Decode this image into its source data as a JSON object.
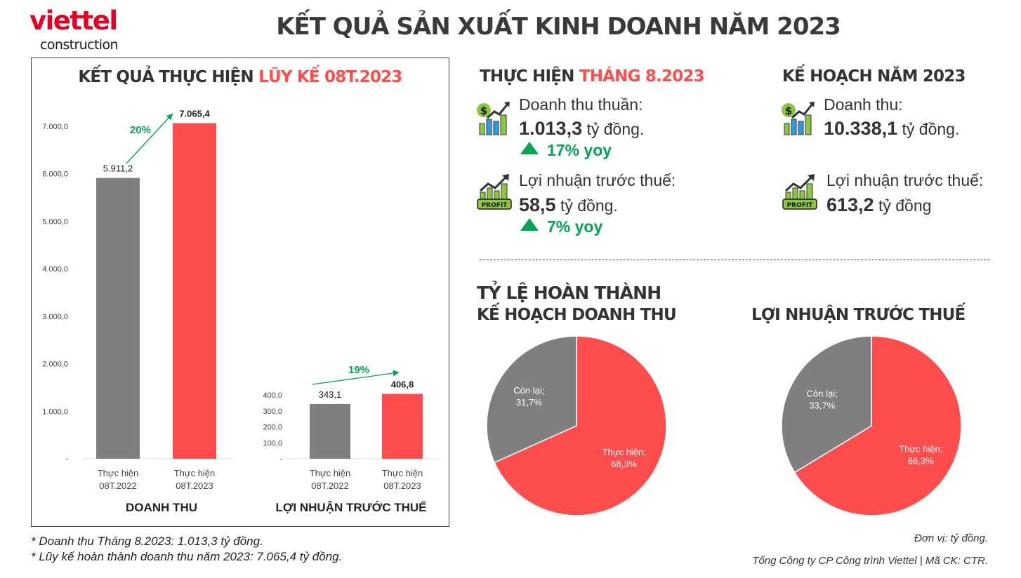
{
  "logo": {
    "brand": "viettel",
    "sub": "construction"
  },
  "title": "KẾT QUẢ SẢN XUẤT KINH DOANH NĂM 2023",
  "colors": {
    "red": "#ff4d4d",
    "gray": "#7f7f7f",
    "green": "#00a650"
  },
  "left_panel": {
    "title_part1": "KẾT QUẢ THỰC HIỆN ",
    "title_part2": "LŨY KẾ 08T.2023"
  },
  "chart_data": [
    {
      "type": "bar",
      "title": "DOANH THU",
      "categories": [
        "Thực hiện 08T.2022",
        "Thực hiện 08T.2023"
      ],
      "category_lines": [
        [
          "Thực hiện",
          "08T.2022"
        ],
        [
          "Thực hiện",
          "08T.2023"
        ]
      ],
      "values": [
        5911.2,
        7065.4
      ],
      "value_labels": [
        "5.911,2",
        "7.065,4"
      ],
      "colors": [
        "#7f7f7f",
        "#ff4d4d"
      ],
      "ylim": [
        0,
        7000
      ],
      "yticks": [
        0,
        1000,
        2000,
        3000,
        4000,
        5000,
        6000,
        7000
      ],
      "ytick_labels": [
        "-",
        "1.000,0",
        "2.000,0",
        "3.000,0",
        "4.000,0",
        "5.000,0",
        "6.000,0",
        "7.000,0"
      ],
      "growth_label": "20%"
    },
    {
      "type": "bar",
      "title": "LỢI NHUẬN TRƯỚC THUẾ",
      "categories": [
        "Thực hiện 08T.2022",
        "Thực hiện 08T.2023"
      ],
      "category_lines": [
        [
          "Thực hiện",
          "08T.2022"
        ],
        [
          "Thực hiện",
          "08T.2023"
        ]
      ],
      "values": [
        343.1,
        406.8
      ],
      "value_labels": [
        "343,1",
        "406,8"
      ],
      "colors": [
        "#7f7f7f",
        "#ff4d4d"
      ],
      "ylim": [
        0,
        400
      ],
      "yticks": [
        0,
        100,
        200,
        300,
        400
      ],
      "ytick_labels": [
        "-",
        "100,0",
        "200,0",
        "300,0",
        "400,0"
      ],
      "growth_label": "19%"
    },
    {
      "type": "pie",
      "title": "TỶ LỆ HOÀN THÀNH KẾ HOẠCH DOANH THU",
      "slices": [
        {
          "label": "Thực hiện;",
          "value": 68.3,
          "text": "68,3%",
          "color": "#ff4d4d"
        },
        {
          "label": "Còn lại;",
          "value": 31.7,
          "text": "31,7%",
          "color": "#7f7f7f"
        }
      ]
    },
    {
      "type": "pie",
      "title": "LỢI NHUẬN TRƯỚC THUẾ",
      "slices": [
        {
          "label": "Thực hiện;",
          "value": 66.3,
          "text": "66,3%",
          "color": "#ff4d4d"
        },
        {
          "label": "Còn lại;",
          "value": 33.7,
          "text": "33,7%",
          "color": "#7f7f7f"
        }
      ]
    }
  ],
  "month": {
    "title_part1": "THỰC HIỆN ",
    "title_part2": "THÁNG 8.2023",
    "revenue_label": "Doanh thu thuần:",
    "revenue_value": "1.013,3",
    "revenue_unit": " tỷ đồng.",
    "revenue_yoy": "17% yoy",
    "profit_label": "Lợi nhuận trước thuế:",
    "profit_value": "58,5",
    "profit_unit": " tỷ đồng.",
    "profit_yoy": "7% yoy"
  },
  "plan": {
    "title": "KẾ HOẠCH NĂM 2023",
    "revenue_label": "Doanh thu:",
    "revenue_value": "10.338,1",
    "revenue_unit": " tỷ đồng.",
    "profit_label": "Lợi nhuận trước thuế:",
    "profit_value": "613,2",
    "profit_unit": " tỷ đồng"
  },
  "pies": {
    "rev_title_line1": "TỶ LỆ HOÀN THÀNH",
    "rev_title_line2": "KẾ HOẠCH DOANH THU",
    "profit_title": "LỢI NHUẬN TRƯỚC THUẾ"
  },
  "icons": {
    "revenue": "revenue-growth-chart-icon",
    "profit": "profit-growth-icon",
    "profit_badge": "PROFIT"
  },
  "notes": [
    "* Doanh thu Tháng 8.2023: 1.013,3 tỷ đồng.",
    "* Lũy kế hoàn thành doanh thu năm 2023: 7.065,4 tỷ đồng."
  ],
  "footer": {
    "unit": "Đơn vị: tỷ đồng.",
    "company": "Tổng Công ty CP Công trình Viettel   |   Mã CK: CTR."
  }
}
